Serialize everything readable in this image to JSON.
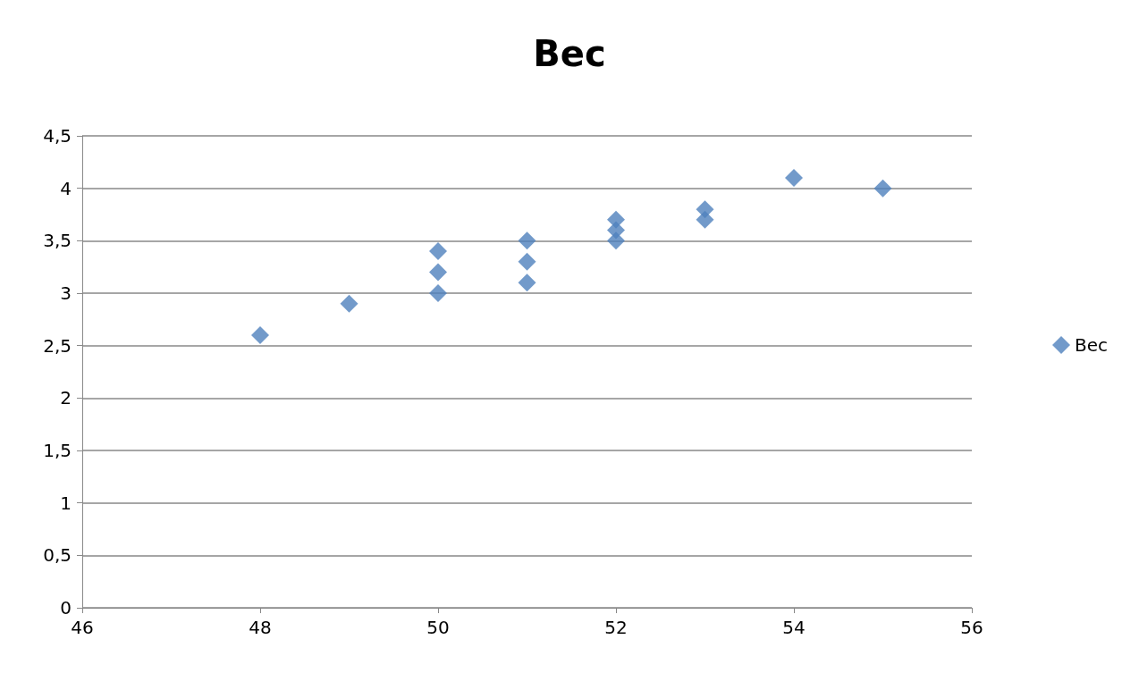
{
  "chart_data": {
    "type": "scatter",
    "title": "Вес",
    "marker": "diamond",
    "legend": "right",
    "grid": "y",
    "xlim": [
      46,
      56
    ],
    "xticks": [
      46,
      48,
      50,
      52,
      54,
      56
    ],
    "ylim": [
      0,
      4.5
    ],
    "yticks": [
      0,
      {
        "value": 0.5,
        "label": "0,5"
      },
      1,
      {
        "value": 1.5,
        "label": "1,5"
      },
      2,
      {
        "value": 2.5,
        "label": "2,5"
      },
      3,
      {
        "value": 3.5,
        "label": "3,5"
      },
      4,
      {
        "value": 4.5,
        "label": "4,5"
      }
    ],
    "series": [
      {
        "name": "Вес",
        "color": "#4f81bd",
        "x": [
          48,
          49,
          50,
          50,
          50,
          51,
          51,
          51,
          52,
          52,
          52,
          53,
          53,
          54,
          55
        ],
        "values": [
          2.6,
          2.9,
          3.4,
          3.2,
          3.0,
          3.5,
          3.3,
          3.1,
          3.7,
          3.6,
          3.5,
          3.8,
          3.7,
          4.1,
          4.0
        ]
      }
    ]
  }
}
